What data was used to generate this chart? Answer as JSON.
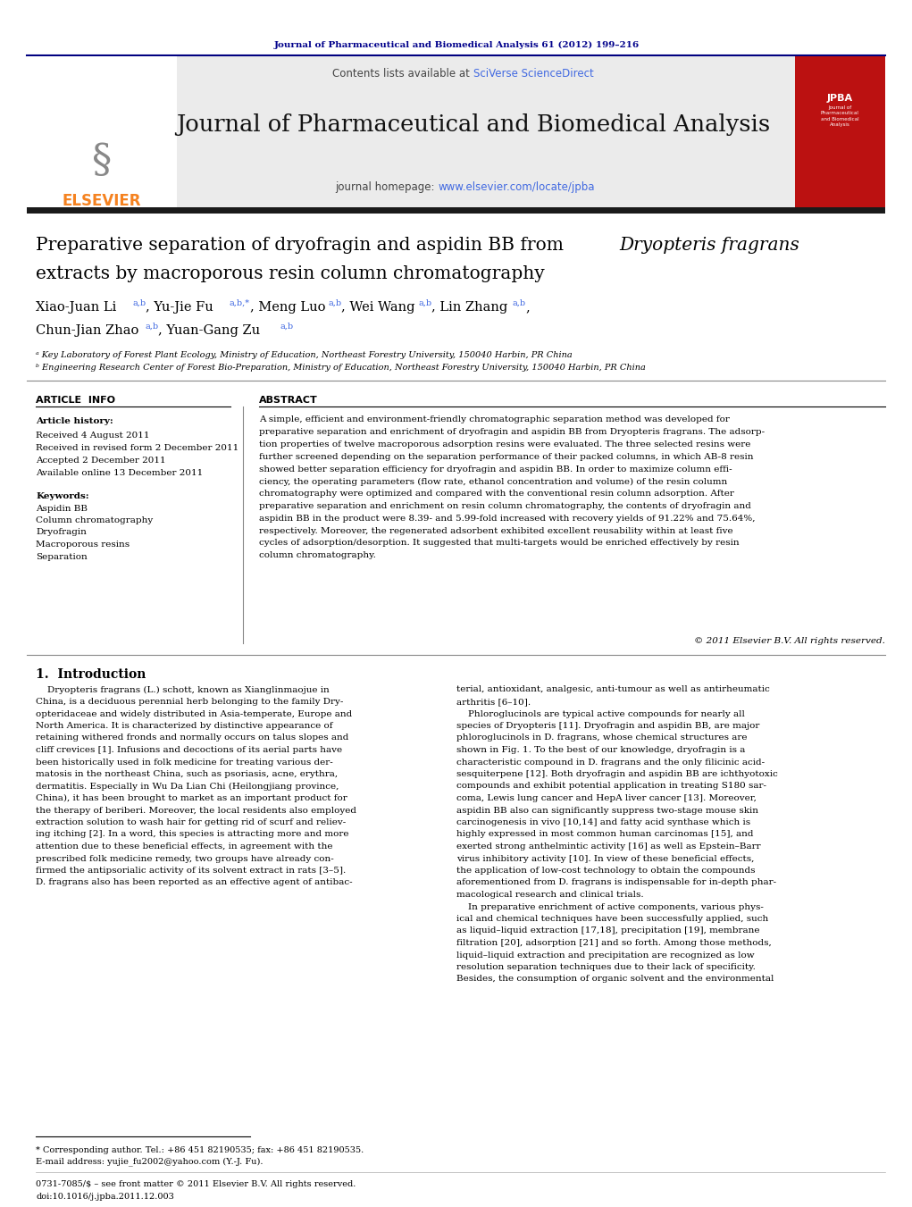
{
  "journal_ref": "Journal of Pharmaceutical and Biomedical Analysis 61 (2012) 199–216",
  "contents_line": "Contents lists available at ",
  "sciverse": "SciVerse ScienceDirect",
  "journal_name": "Journal of Pharmaceutical and Biomedical Analysis",
  "homepage_prefix": "journal homepage: ",
  "homepage_url": "www.elsevier.com/locate/jpba",
  "elsevier_text": "ELSEVIER",
  "jpba_label": "JPBA",
  "title_line1": "Preparative separation of dryofragin and aspidin BB from ",
  "title_italic": "Dryopteris fragrans",
  "title_line2": "extracts by macroporous resin column chromatography",
  "affil_a": "ᵃ Key Laboratory of Forest Plant Ecology, Ministry of Education, Northeast Forestry University, 150040 Harbin, PR China",
  "affil_b": "ᵇ Engineering Research Center of Forest Bio-Preparation, Ministry of Education, Northeast Forestry University, 150040 Harbin, PR China",
  "article_info_title": "ARTICLE  INFO",
  "article_history": "Article history:",
  "received": "Received 4 August 2011",
  "received_revised": "Received in revised form 2 December 2011",
  "accepted": "Accepted 2 December 2011",
  "available": "Available online 13 December 2011",
  "keywords_title": "Keywords:",
  "keyword1": "Aspidin BB",
  "keyword2": "Column chromatography",
  "keyword3": "Dryofragin",
  "keyword4": "Macroporous resins",
  "keyword5": "Separation",
  "abstract_title": "ABSTRACT",
  "copyright": "© 2011 Elsevier B.V. All rights reserved.",
  "intro_title": "1.  Introduction",
  "footnote1": "* Corresponding author. Tel.: +86 451 82190535; fax: +86 451 82190535.",
  "footnote2": "E-mail address: yujie_fu2002@yahoo.com (Y.-J. Fu).",
  "footnote3": "0731-7085/$ – see front matter © 2011 Elsevier B.V. All rights reserved.",
  "footnote4": "doi:10.1016/j.jpba.2011.12.003",
  "bg_color": "#ffffff",
  "elsevier_orange": "#f58220",
  "journal_ref_color": "#00008b",
  "sciverse_color": "#4169e1",
  "url_color": "#4169e1",
  "abstract_lines": [
    "A simple, efficient and environment-friendly chromatographic separation method was developed for",
    "preparative separation and enrichment of dryofragin and aspidin BB from Dryopteris fragrans. The adsorp-",
    "tion properties of twelve macroporous adsorption resins were evaluated. The three selected resins were",
    "further screened depending on the separation performance of their packed columns, in which AB-8 resin",
    "showed better separation efficiency for dryofragin and aspidin BB. In order to maximize column effi-",
    "ciency, the operating parameters (flow rate, ethanol concentration and volume) of the resin column",
    "chromatography were optimized and compared with the conventional resin column adsorption. After",
    "preparative separation and enrichment on resin column chromatography, the contents of dryofragin and",
    "aspidin BB in the product were 8.39- and 5.99-fold increased with recovery yields of 91.22% and 75.64%,",
    "respectively. Moreover, the regenerated adsorbent exhibited excellent reusability within at least five",
    "cycles of adsorption/desorption. It suggested that multi-targets would be enriched effectively by resin",
    "column chromatography."
  ],
  "intro_col1_lines": [
    "    Dryopteris fragrans (L.) schott, known as Xianglinmaojue in",
    "China, is a deciduous perennial herb belonging to the family Dry-",
    "opteridaceae and widely distributed in Asia-temperate, Europe and",
    "North America. It is characterized by distinctive appearance of",
    "retaining withered fronds and normally occurs on talus slopes and",
    "cliff crevices [1]. Infusions and decoctions of its aerial parts have",
    "been historically used in folk medicine for treating various der-",
    "matosis in the northeast China, such as psoriasis, acne, erythra,",
    "dermatitis. Especially in Wu Da Lian Chi (Heilongjiang province,",
    "China), it has been brought to market as an important product for",
    "the therapy of beriberi. Moreover, the local residents also employed",
    "extraction solution to wash hair for getting rid of scurf and reliev-",
    "ing itching [2]. In a word, this species is attracting more and more",
    "attention due to these beneficial effects, in agreement with the",
    "prescribed folk medicine remedy, two groups have already con-",
    "firmed the antipsorialic activity of its solvent extract in rats [3–5].",
    "D. fragrans also has been reported as an effective agent of antibac-"
  ],
  "intro_col2_lines": [
    "terial, antioxidant, analgesic, anti-tumour as well as antirheumatic",
    "arthritis [6–10].",
    "    Phloroglucinols are typical active compounds for nearly all",
    "species of Dryopteris [11]. Dryofragin and aspidin BB, are major",
    "phloroglucinols in D. fragrans, whose chemical structures are",
    "shown in Fig. 1. To the best of our knowledge, dryofragin is a",
    "characteristic compound in D. fragrans and the only filicinic acid-",
    "sesquiterpene [12]. Both dryofragin and aspidin BB are ichthyotoxic",
    "compounds and exhibit potential application in treating S180 sar-",
    "coma, Lewis lung cancer and HepA liver cancer [13]. Moreover,",
    "aspidin BB also can significantly suppress two-stage mouse skin",
    "carcinogenesis in vivo [10,14] and fatty acid synthase which is",
    "highly expressed in most common human carcinomas [15], and",
    "exerted strong anthelmintic activity [16] as well as Epstein–Barr",
    "virus inhibitory activity [10]. In view of these beneficial effects,",
    "the application of low-cost technology to obtain the compounds",
    "aforementioned from D. fragrans is indispensable for in-depth phar-",
    "macological research and clinical trials.",
    "    In preparative enrichment of active components, various phys-",
    "ical and chemical techniques have been successfully applied, such",
    "as liquid–liquid extraction [17,18], precipitation [19], membrane",
    "filtration [20], adsorption [21] and so forth. Among those methods,",
    "liquid–liquid extraction and precipitation are recognized as low",
    "resolution separation techniques due to their lack of specificity.",
    "Besides, the consumption of organic solvent and the environmental"
  ]
}
